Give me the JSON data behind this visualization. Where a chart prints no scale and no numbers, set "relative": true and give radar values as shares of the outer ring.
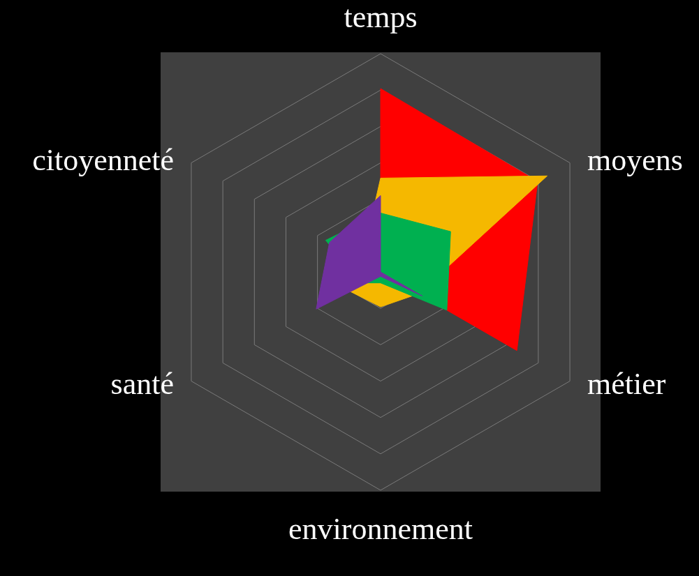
{
  "chart_data": {
    "type": "radar",
    "relative": true,
    "grid": true,
    "categories": [
      "temps",
      "moyens",
      "métier",
      "environnement",
      "santé",
      "citoyenneté"
    ],
    "series": [
      {
        "color": "#ff0000",
        "values": [
          0.84,
          0.83,
          0.72,
          0,
          0,
          0
        ]
      },
      {
        "color": "#f5b800",
        "values": [
          0.43,
          0.88,
          0.2,
          0.16,
          0.17,
          0.1
        ]
      },
      {
        "color": "#00b050",
        "values": [
          0.27,
          0.37,
          0.35,
          0.05,
          0.1,
          0.29
        ]
      },
      {
        "color": "#7030a0",
        "values": [
          0.35,
          0,
          0.22,
          0.02,
          0.34,
          0.27
        ]
      }
    ]
  }
}
